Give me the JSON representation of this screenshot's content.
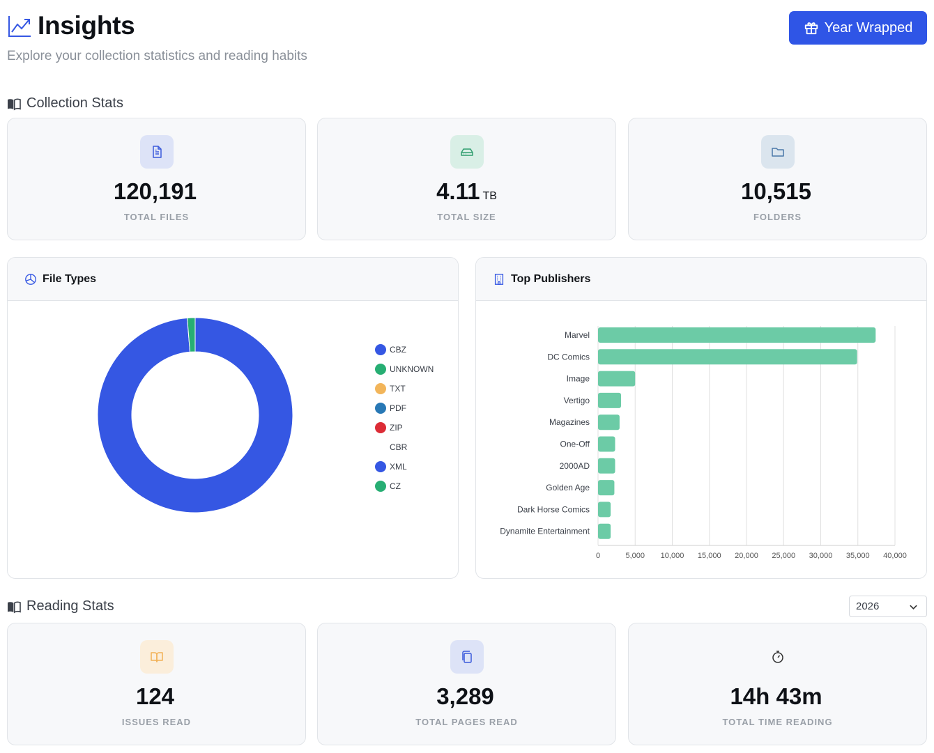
{
  "header": {
    "title": "Insights",
    "subtitle": "Explore your collection statistics and reading habits",
    "wrapped_button": "Year Wrapped"
  },
  "collection": {
    "title": "Collection Stats",
    "stats": [
      {
        "value": "120,191",
        "unit": "",
        "label": "TOTAL FILES",
        "icon": "file-icon",
        "color": "#3b5bdb",
        "bg": "#dde3f7"
      },
      {
        "value": "4.11",
        "unit": "TB",
        "label": "TOTAL SIZE",
        "icon": "hard-drive-icon",
        "color": "#2f9e6e",
        "bg": "#d9efe6"
      },
      {
        "value": "10,515",
        "unit": "",
        "label": "FOLDERS",
        "icon": "folder-icon",
        "color": "#4a78a8",
        "bg": "#dbe5ee"
      }
    ]
  },
  "file_types": {
    "title": "File Types",
    "legend": [
      {
        "name": "CBZ",
        "color": "#3557e3"
      },
      {
        "name": "UNKNOWN",
        "color": "#27ae73"
      },
      {
        "name": "TXT",
        "color": "#f2b55a"
      },
      {
        "name": "PDF",
        "color": "#2878b5"
      },
      {
        "name": "ZIP",
        "color": "#dc2c36"
      },
      {
        "name": "CBR",
        "color": "transparent"
      },
      {
        "name": "XML",
        "color": "#3557e3"
      },
      {
        "name": "CZ",
        "color": "#27ae73"
      }
    ]
  },
  "top_publishers": {
    "title": "Top Publishers"
  },
  "chart_data": [
    {
      "type": "pie",
      "labels": [
        "CBZ",
        "UNKNOWN",
        "TXT",
        "PDF",
        "ZIP",
        "CBR",
        "XML",
        "CZ"
      ],
      "values": [
        98.7,
        1.3,
        0,
        0,
        0,
        0,
        0,
        0
      ],
      "colors": [
        "#3557e3",
        "#27ae73",
        "#f2b55a",
        "#2878b5",
        "#dc2c36",
        "#cccccc",
        "#3557e3",
        "#27ae73"
      ],
      "legend": "right"
    },
    {
      "type": "bar",
      "orientation": "horizontal",
      "categories": [
        "Marvel",
        "DC Comics",
        "Image",
        "Vertigo",
        "Magazines",
        "One-Off",
        "2000AD",
        "Golden Age",
        "Dark Horse Comics",
        "Dynamite Entertainment"
      ],
      "values": [
        37400,
        34900,
        5000,
        3100,
        2900,
        2300,
        2300,
        2200,
        1700,
        1700
      ],
      "xlim": [
        0,
        40000
      ],
      "xticks": [
        0,
        5000,
        10000,
        15000,
        20000,
        25000,
        30000,
        35000,
        40000
      ],
      "xtick_labels": [
        "0",
        "5,000",
        "10,000",
        "15,000",
        "20,000",
        "25,000",
        "30,000",
        "35,000",
        "40,000"
      ],
      "grid": true,
      "color": "#6ccba6"
    }
  ],
  "reading": {
    "title": "Reading Stats",
    "year": "2026",
    "stats": [
      {
        "value": "124",
        "unit": "",
        "label": "ISSUES READ",
        "icon": "book-open-icon",
        "color": "#f2b055",
        "bg": "#fbeedb"
      },
      {
        "value": "3,289",
        "unit": "",
        "label": "TOTAL PAGES READ",
        "icon": "pages-icon",
        "color": "#3b5bdb",
        "bg": "#dde3f7"
      },
      {
        "value": "14h 43m",
        "unit": "",
        "label": "TOTAL TIME READING",
        "icon": "stopwatch-icon",
        "color": "#333333",
        "bg": "transparent"
      }
    ]
  }
}
